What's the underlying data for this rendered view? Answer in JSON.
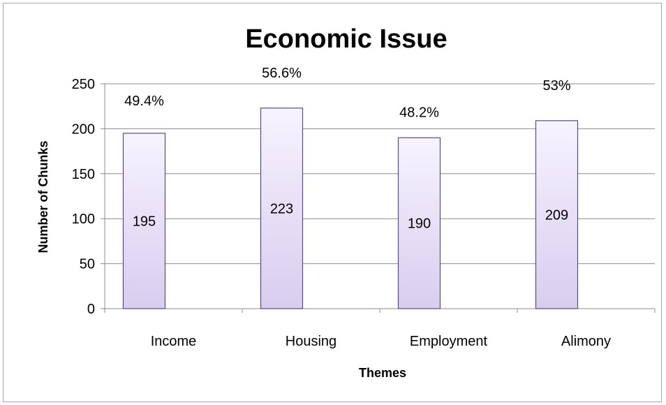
{
  "chart_data": {
    "type": "bar",
    "title": "Economic Issue",
    "xlabel": "Themes",
    "ylabel": "Number of Chunks",
    "categories": [
      "Income",
      "Housing",
      "Employment",
      "Alimony"
    ],
    "values": [
      195,
      223,
      190,
      209
    ],
    "value_labels": [
      "195",
      "223",
      "190",
      "209"
    ],
    "percent_labels": [
      "49.4%",
      "56.6%",
      "48.2%",
      "53%"
    ],
    "ylim": [
      0,
      250
    ],
    "yticks": [
      0,
      50,
      100,
      150,
      200,
      250
    ],
    "ytick_labels": [
      "0",
      "50",
      "100",
      "150",
      "200",
      "250"
    ],
    "grid": true,
    "legend": "none",
    "colors": {
      "bar_fill_top": "#f7f3ff",
      "bar_fill_bottom": "#d8cdee",
      "bar_edge": "#5b4a86",
      "grid": "#8c8c8c"
    }
  }
}
